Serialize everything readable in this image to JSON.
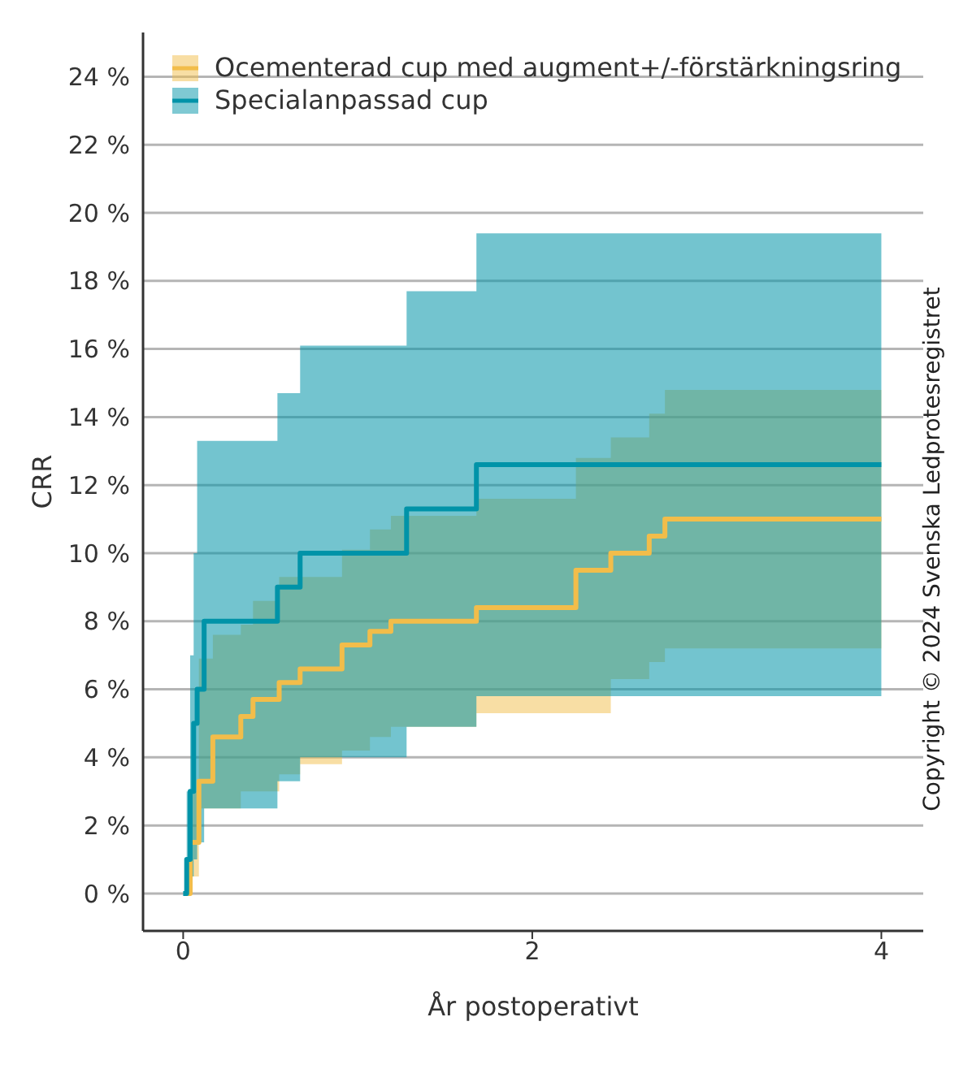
{
  "chart_data": {
    "type": "step",
    "xlabel": "År postoperativt",
    "ylabel": "CRR",
    "xlim": [
      -0.23,
      4.24
    ],
    "xticks": [
      0,
      2,
      4
    ],
    "ylim": [
      -1.1,
      25.3
    ],
    "yticks": [
      {
        "value": 0,
        "label": "0 %"
      },
      {
        "value": 2,
        "label": "2 %"
      },
      {
        "value": 4,
        "label": "4 %"
      },
      {
        "value": 6,
        "label": "6 %"
      },
      {
        "value": 8,
        "label": "8 %"
      },
      {
        "value": 10,
        "label": "10 %"
      },
      {
        "value": 12,
        "label": "12 %"
      },
      {
        "value": 14,
        "label": "14 %"
      },
      {
        "value": 16,
        "label": "16 %"
      },
      {
        "value": 18,
        "label": "18 %"
      },
      {
        "value": 20,
        "label": "20 %"
      },
      {
        "value": 22,
        "label": "22 %"
      },
      {
        "value": 24,
        "label": "24 %"
      }
    ],
    "grid": "y",
    "legend": "top left",
    "line_style": "solid",
    "marker": "none",
    "annotations": [
      "Copyright © 2024 Svenska Ledprotesregistret"
    ],
    "series": [
      {
        "name": "Ocementerad cup med augment+/-förstärkningsring",
        "color": "#f2bd4a",
        "x": [
          0.02,
          0.04,
          0.09,
          0.17,
          0.33,
          0.4,
          0.55,
          0.67,
          0.91,
          1.07,
          1.19,
          1.68,
          2.25,
          2.45,
          2.67,
          2.76,
          4
        ],
        "values": [
          0,
          1.5,
          3.3,
          4.6,
          5.2,
          5.7,
          6.2,
          6.6,
          7.3,
          7.7,
          8.0,
          8.4,
          9.5,
          10.0,
          10.5,
          11.0,
          11.0
        ],
        "lower": [
          0,
          0.5,
          2.5,
          2.5,
          3.0,
          3.0,
          3.5,
          3.8,
          4.2,
          4.6,
          4.9,
          5.3,
          5.3,
          6.3,
          6.8,
          7.2,
          7.2
        ],
        "upper": [
          0,
          3,
          6.9,
          7.6,
          7.9,
          8.6,
          9.3,
          9.3,
          10.1,
          10.7,
          11.1,
          11.6,
          12.8,
          13.4,
          14.1,
          14.8,
          14.8
        ]
      },
      {
        "name": "Specialanpassad cup",
        "color": "#0093a8",
        "x": [
          0,
          0.02,
          0.04,
          0.06,
          0.08,
          0.12,
          0.54,
          0.67,
          1.28,
          1.68,
          2.3,
          4
        ],
        "values": [
          0,
          1,
          3,
          5,
          6,
          8,
          9,
          10,
          11.3,
          12.6,
          12.6,
          12.6
        ],
        "lower": [
          0,
          0,
          0.5,
          1,
          1.5,
          2.5,
          3.3,
          4.0,
          4.9,
          5.8,
          5.8,
          5.8
        ],
        "upper": [
          0,
          3,
          7,
          10,
          13.3,
          13.3,
          14.7,
          16.1,
          17.7,
          19.4,
          19.4,
          19.4
        ]
      }
    ]
  }
}
